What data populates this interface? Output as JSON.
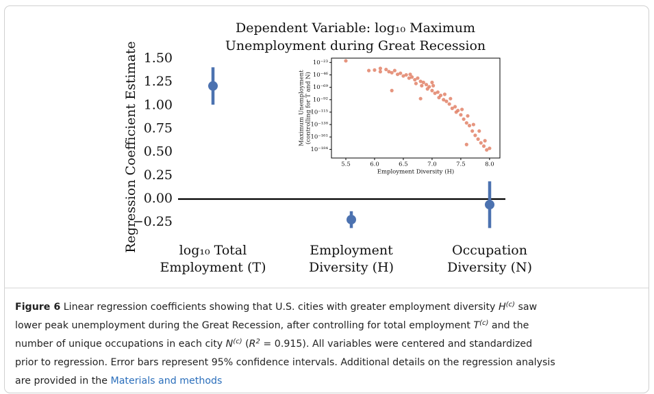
{
  "chart_data": [
    {
      "type": "errorbar",
      "title": [
        "Dependent Variable: log₁₀ Maximum",
        "Unemployment during Great Recession"
      ],
      "ylabel": "Regression Coefficient Estimate",
      "categories": [
        [
          "log₁₀ Total",
          "Employment (T)"
        ],
        [
          "Employment",
          "Diversity (H)"
        ],
        [
          "Occupation",
          "Diversity (N)"
        ]
      ],
      "values": [
        1.21,
        -0.22,
        -0.06
      ],
      "errors": [
        0.2,
        0.09,
        0.25
      ],
      "color": "#4c72b0",
      "ylim": [
        -0.37,
        1.58
      ],
      "yticks": [
        {
          "value": 1.5,
          "label": "1.50"
        },
        1.25,
        {
          "value": 1,
          "label": "1.00"
        },
        0.75,
        {
          "value": 0.5,
          "label": "0.50"
        },
        0.25,
        {
          "value": 0,
          "label": "0.00"
        },
        {
          "value": -0.25,
          "label": "−0.25"
        }
      ],
      "hline": 0
    },
    {
      "type": "scatter",
      "xlabel": "Employment Diversity (H)",
      "ylabel": [
        "Maximum Unemployment",
        "(controlling for T and N)"
      ],
      "x": [
        5.5,
        5.9,
        6.0,
        6.1,
        6.2,
        6.25,
        6.3,
        6.35,
        6.4,
        6.45,
        6.5,
        6.55,
        6.6,
        6.62,
        6.65,
        6.7,
        6.72,
        6.75,
        6.8,
        6.82,
        6.85,
        6.9,
        6.92,
        6.95,
        7.0,
        7.02,
        7.05,
        7.1,
        7.12,
        7.15,
        7.2,
        7.22,
        7.25,
        7.3,
        7.32,
        7.35,
        7.4,
        7.42,
        7.45,
        7.5,
        7.52,
        7.55,
        7.6,
        7.62,
        7.65,
        7.7,
        7.72,
        7.75,
        7.8,
        7.82,
        7.85,
        7.9,
        7.92,
        7.95,
        8.0,
        6.3,
        6.8,
        7.6,
        7.0,
        6.1
      ],
      "y": [
        1e-20,
        1e-38,
        1e-37,
        1e-40,
        1e-36,
        1e-40,
        1e-42,
        1e-38,
        1e-45,
        1e-43,
        1e-48,
        1e-46,
        1e-52,
        1e-45,
        1e-50,
        1e-55,
        1e-62,
        1e-52,
        1e-58,
        1e-66,
        1e-60,
        1e-64,
        1e-72,
        1e-68,
        1e-75,
        1e-66,
        1e-80,
        1e-78,
        1e-88,
        1e-84,
        1e-92,
        1e-82,
        1e-95,
        1e-100,
        1e-90,
        1e-108,
        1e-105,
        1e-115,
        1e-112,
        1e-120,
        1e-110,
        1e-128,
        1e-135,
        1e-122,
        1e-140,
        1e-150,
        1e-138,
        1e-158,
        1e-165,
        1e-150,
        1e-172,
        1e-178,
        1e-168,
        1e-185,
        1e-182,
        1e-75,
        1e-90,
        1e-175,
        1e-60,
        1e-34
      ],
      "color": "#e07a5f",
      "xlim": [
        5.25,
        8.18
      ],
      "ylim": [
        1e-200,
        1e-15
      ],
      "log_y": true,
      "xticks": [
        5.5,
        {
          "value": 6,
          "label": "6.0"
        },
        6.5,
        {
          "value": 7,
          "label": "7.0"
        },
        7.5,
        {
          "value": 8,
          "label": "8.0"
        }
      ],
      "yticks": [
        {
          "value": 1e-23,
          "label": "10⁻²³"
        },
        {
          "value": 1e-46,
          "label": "10⁻⁴⁶"
        },
        {
          "value": 1e-69,
          "label": "10⁻⁶⁹"
        },
        {
          "value": 1e-92,
          "label": "10⁻⁹²"
        },
        {
          "value": 1e-115,
          "label": "10⁻¹¹⁵"
        },
        {
          "value": 1e-138,
          "label": "10⁻¹³⁸"
        },
        {
          "value": 1e-161,
          "label": "10⁻¹⁶¹"
        },
        {
          "value": 1e-184,
          "label": "10⁻¹⁸⁴"
        }
      ]
    }
  ],
  "caption": {
    "lines": [
      [
        {
          "text": "Figure 6",
          "style": "b"
        },
        {
          "text": " Linear regression coefficients showing that U.S. cities with greater employment diversity "
        },
        {
          "text": "H",
          "style": "i"
        },
        {
          "text": "(c)",
          "style": "sup"
        },
        {
          "text": " saw"
        }
      ],
      [
        {
          "text": "lower peak unemployment during the Great Recession, after controlling for total employment "
        },
        {
          "text": "T",
          "style": "i"
        },
        {
          "text": "(c)",
          "style": "sup"
        },
        {
          "text": " and the"
        }
      ],
      [
        {
          "text": "number of unique occupations in each city "
        },
        {
          "text": "N",
          "style": "i"
        },
        {
          "text": "(c)",
          "style": "sup"
        },
        {
          "text": " ("
        },
        {
          "text": "R",
          "style": "i"
        },
        {
          "text": "2",
          "style": "sup"
        },
        {
          "text": " = 0.915). All variables were centered and standardized"
        }
      ],
      [
        {
          "text": "prior to regression. Error bars represent 95% confidence intervals. Additional details on the regression analysis"
        }
      ],
      [
        {
          "text": "are provided in the "
        },
        {
          "text": "Materials and methods",
          "style": "link"
        }
      ]
    ]
  }
}
